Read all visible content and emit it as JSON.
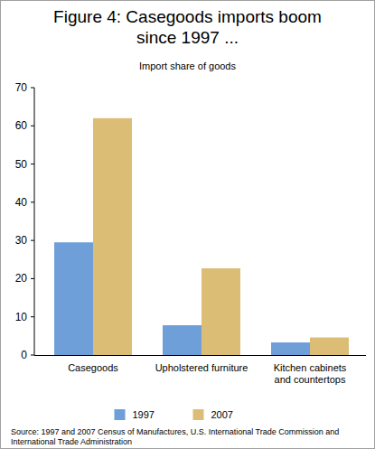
{
  "chart_data": {
    "type": "bar",
    "title": "Figure 4: Casegoods imports boom since 1997 ...",
    "subtitle": "Import share of goods",
    "categories": [
      "Casegoods",
      "Upholstered furniture",
      "Kitchen cabinets and countertops"
    ],
    "series": [
      {
        "name": "1997",
        "color": "#6f9fd8",
        "values": [
          29.5,
          7.8,
          3.3
        ]
      },
      {
        "name": "2007",
        "color": "#dcbd76",
        "values": [
          62,
          22.7,
          4.6
        ]
      }
    ],
    "ylim": [
      0,
      70
    ],
    "yticks": [
      0,
      10,
      20,
      30,
      40,
      50,
      60,
      70
    ],
    "grid": false,
    "legend": "bottom",
    "source": "Source: 1997 and 2007 Census of Manufactures, U.S. International Trade Commission and International Trade Administration"
  }
}
